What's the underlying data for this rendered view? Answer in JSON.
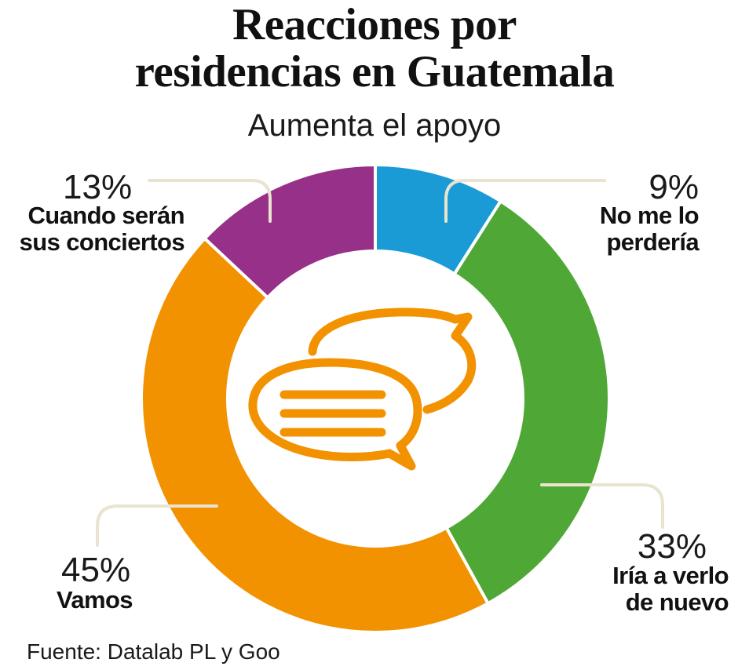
{
  "chart_data": {
    "type": "pie",
    "variant": "donut",
    "title_line1": "Reacciones por",
    "title_line2": "residencias en Guatemala",
    "subtitle": "Aumenta el apoyo",
    "source": "Fuente: Datalab PL y  Goo",
    "slices": [
      {
        "label_line1": "No me lo",
        "label_line2": "perdería",
        "value": 9,
        "display": "9%",
        "color": "#1a9bd6"
      },
      {
        "label_line1": "Iría a verlo",
        "label_line2": "de nuevo",
        "value": 33,
        "display": "33%",
        "color": "#4fa836"
      },
      {
        "label_line1": "",
        "label_line2": "Vamos",
        "value": 45,
        "display": "45%",
        "color": "#f39200"
      },
      {
        "label_line1": "Cuando serán",
        "label_line2": "sus conciertos",
        "value": 13,
        "display": "13%",
        "color": "#963088"
      }
    ]
  },
  "center_icon": {
    "name": "chat-bubbles-icon",
    "color": "#f39200"
  },
  "leader_line_color": "#e9e4cf"
}
